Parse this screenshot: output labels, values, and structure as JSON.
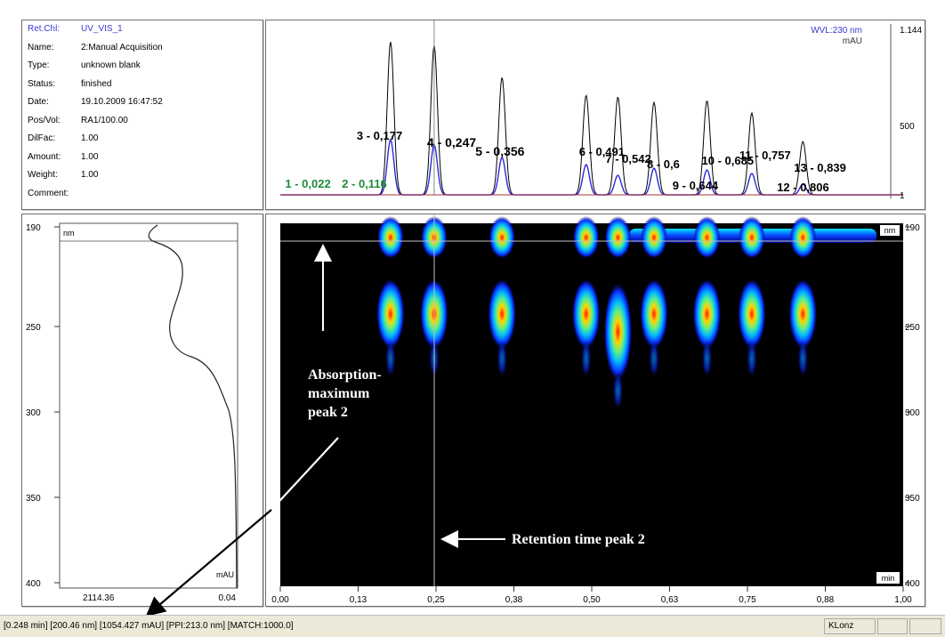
{
  "info_panel": {
    "rows": [
      {
        "label": "Ret.Chl:",
        "value": "UV_VIS_1"
      },
      {
        "label": "Name:",
        "value": "2:Manual Acquisition"
      },
      {
        "label": "Type:",
        "value": "unknown blank"
      },
      {
        "label": "Status:",
        "value": "finished"
      },
      {
        "label": "Date:",
        "value": "19.10.2009 16:47:52"
      },
      {
        "label": "Pos/Vol:",
        "value": "RA1/100.00"
      },
      {
        "label": "DilFac:",
        "value": "1.00"
      },
      {
        "label": "Amount:",
        "value": "1.00"
      },
      {
        "label": "Weight:",
        "value": "1.00"
      },
      {
        "label": "Comment:",
        "value": ""
      }
    ]
  },
  "chromatogram": {
    "wavelength_label": "WVL:230 nm",
    "unit_label": "mAU",
    "y_ticks": [
      "1.144",
      "500",
      "1"
    ],
    "peaks": [
      {
        "label": "1 - 0,022",
        "rt": 0.022
      },
      {
        "label": "2 - 0,116",
        "rt": 0.116
      },
      {
        "label": "3 - 0,177",
        "rt": 0.177
      },
      {
        "label": "4 - 0,247",
        "rt": 0.247
      },
      {
        "label": "5 - 0,356",
        "rt": 0.356
      },
      {
        "label": "6 - 0,491",
        "rt": 0.491
      },
      {
        "label": "7 - 0,542",
        "rt": 0.542
      },
      {
        "label": "8 - 0,6",
        "rt": 0.6
      },
      {
        "label": "9 - 0,644",
        "rt": 0.644
      },
      {
        "label": "10 - 0,685",
        "rt": 0.685
      },
      {
        "label": "11 - 0,757",
        "rt": 0.757
      },
      {
        "label": "12 - 0,806",
        "rt": 0.806
      },
      {
        "label": "13 - 0,839",
        "rt": 0.839
      }
    ]
  },
  "spectrum": {
    "top_left_label": "nm",
    "y_ticks": [
      "190",
      "250",
      "300",
      "350",
      "400"
    ],
    "bottom_left_value": "2114.36",
    "bottom_right_value": "0.04",
    "unit_label": "mAU"
  },
  "map": {
    "top_right_label": "nm",
    "bottom_right_label": "min",
    "right_ticks": [
      "190",
      "250",
      "300",
      "350",
      "400"
    ],
    "x_ticks": [
      "0,00",
      "0,13",
      "0,25",
      "0,38",
      "0,50",
      "0,63",
      "0,75",
      "0,88",
      "1,00"
    ]
  },
  "annotations": {
    "absorption_lines": [
      "Absorption-",
      "maximum",
      "peak 2"
    ],
    "retention": "Retention time peak 2"
  },
  "status_bar": {
    "text": "[0.248 min] [200.46 nm] [1054.427 mAU] [PPI:213.0 nm] [MATCH:1000.0]",
    "user": "KLonz"
  },
  "colors": {
    "chromatogram_black": "#000000",
    "chromatogram_blue": "#2a2ad9",
    "label_green": "#1f8a3b",
    "map_background": "#000000",
    "annotation_text": "#ffffff"
  }
}
